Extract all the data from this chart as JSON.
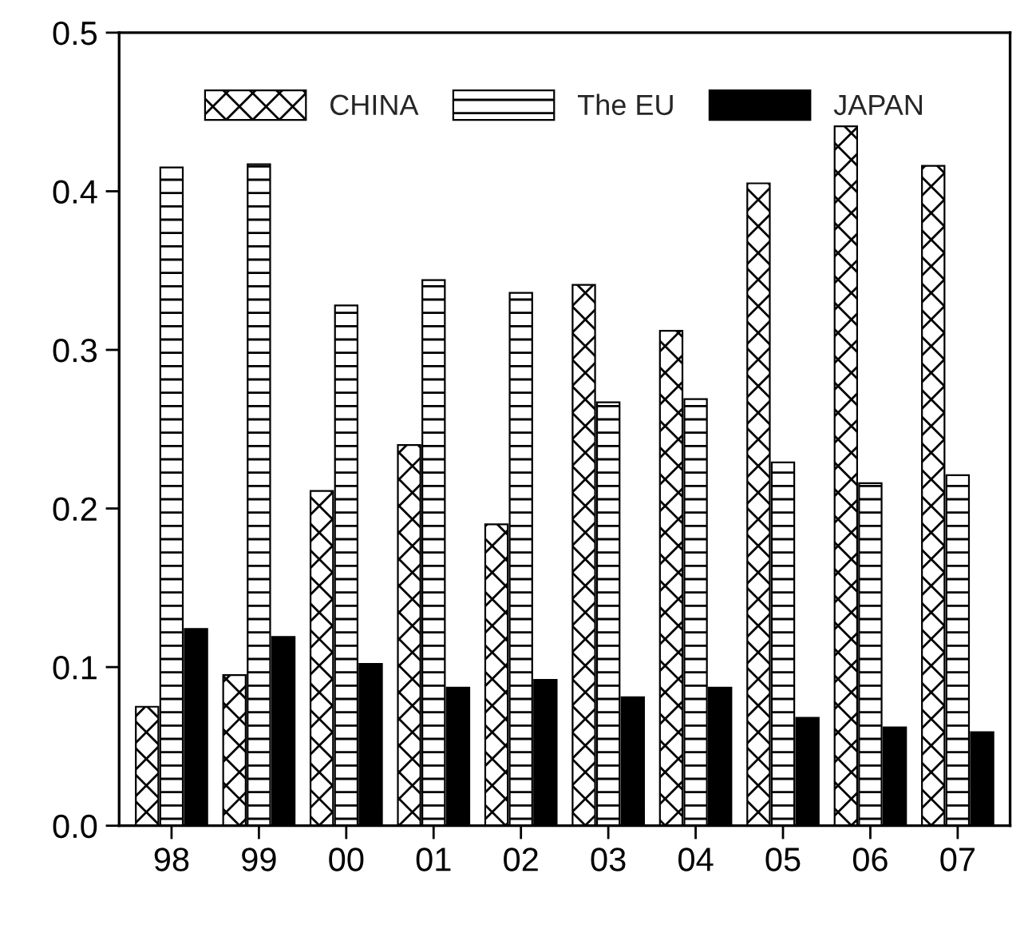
{
  "chart_data": {
    "type": "bar",
    "categories": [
      "98",
      "99",
      "00",
      "01",
      "02",
      "03",
      "04",
      "05",
      "06",
      "07"
    ],
    "series": [
      {
        "name": "CHINA",
        "color": "#000000",
        "values": [
          0.075,
          0.095,
          0.211,
          0.24,
          0.19,
          0.341,
          0.312,
          0.405,
          0.441,
          0.416
        ]
      },
      {
        "name": "The EU",
        "color": "#000000",
        "values": [
          0.415,
          0.417,
          0.328,
          0.344,
          0.336,
          0.267,
          0.269,
          0.229,
          0.216,
          0.221
        ]
      },
      {
        "name": "JAPAN",
        "color": "#000000",
        "values": [
          0.124,
          0.119,
          0.102,
          0.087,
          0.092,
          0.081,
          0.087,
          0.068,
          0.062,
          0.059
        ]
      }
    ],
    "ylim": [
      0,
      0.5
    ],
    "yticks": [
      {
        "value": 0,
        "label": "0.0"
      },
      0.1,
      0.2,
      0.3,
      0.4,
      0.5
    ],
    "grid": false,
    "legend": "top"
  }
}
